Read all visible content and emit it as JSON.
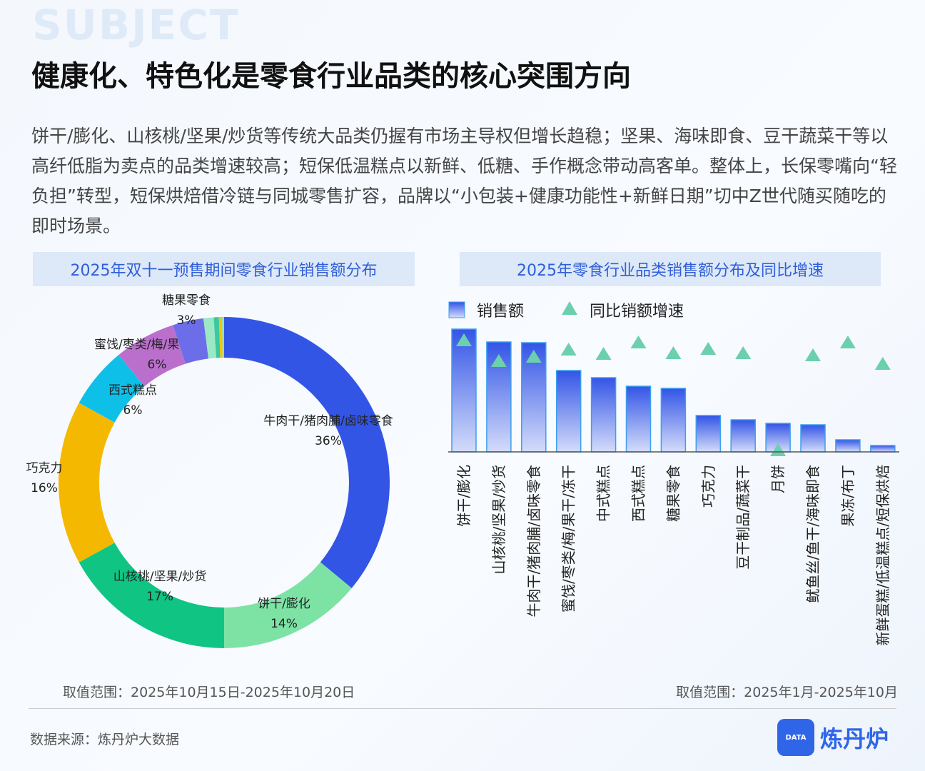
{
  "watermark": "SUBJECT",
  "title": "健康化、特色化是零食行业品类的核心突围方向",
  "description": "饼干/膨化、山核桃/坚果/炒货等传统大品类仍握有市场主导权但增长趋稳；坚果、海味即食、豆干蔬菜干等以高纤低脂为卖点的品类增速较高；短保低温糕点以新鲜、低糖、手作概念带动高客单。整体上，长保零嘴向“轻负担”转型，短保烘焙借冷链与同城零售扩容，品牌以“小包装+健康功能性+新鲜日期”切中Z世代随买随吃的即时场景。",
  "footer": {
    "source": "数据来源：炼丹炉大数据",
    "brand": "炼丹炉",
    "logo_text": "DATA"
  },
  "chart_data": [
    {
      "type": "pie",
      "donut": true,
      "title": "2025年双十一预售期间零食行业销售额分布",
      "note": "取值范围：2025年10月15日-2025年10月20日",
      "slices": [
        {
          "label": "牛肉干/猪肉脯/卤味零食",
          "value": 36,
          "display": "36%",
          "color": "#3355e6"
        },
        {
          "label": "饼干/膨化",
          "value": 14,
          "display": "14%",
          "color": "#7de3a5"
        },
        {
          "label": "山核桃/坚果/炒货",
          "value": 17,
          "display": "17%",
          "color": "#10c484"
        },
        {
          "label": "巧克力",
          "value": 16,
          "display": "16%",
          "color": "#f5b800"
        },
        {
          "label": "西式糕点",
          "value": 6,
          "display": "6%",
          "color": "#0ec0e8"
        },
        {
          "label": "蜜饯/枣类/梅/果干/冻干",
          "value": 6,
          "display": "6%",
          "color": "#bb6fcc"
        },
        {
          "label": "糖果零食",
          "value": 3,
          "display": "3%",
          "color": "#6b6ee8"
        },
        {
          "label": "",
          "value": 1,
          "display": "",
          "color": "#9be8c4"
        },
        {
          "label": "",
          "value": 0.5,
          "display": "",
          "color": "#3cc8a0"
        },
        {
          "label": "",
          "value": 0.3,
          "display": "",
          "color": "#f5c400"
        },
        {
          "label": "",
          "value": 0.2,
          "display": "",
          "color": "#8fe0b0"
        }
      ]
    },
    {
      "type": "bar+scatter",
      "title": "2025年零食行业品类销售额分布及同比增速",
      "note": "取值范围：2025年1月-2025年10月",
      "axis_values_shown": false,
      "categories": [
        "饼干/膨化",
        "山核桃/坚果/炒货",
        "牛肉干/猪肉脯/卤味零食",
        "蜜饯/枣类/梅/果干/冻干",
        "中式糕点",
        "西式糕点",
        "糖果零食",
        "巧克力",
        "豆干制品/蔬菜干",
        "月饼",
        "鱿鱼丝/鱼干/海味即食",
        "果冻/布丁",
        "新鲜蛋糕/低温糕点/短保烘焙"
      ],
      "series": [
        {
          "name": "销售额",
          "type": "bar",
          "color": "#3355e6",
          "values": [
            172,
            154,
            153,
            114,
            104,
            92,
            89,
            51,
            45,
            40,
            38,
            17,
            9
          ]
        },
        {
          "name": "同比销额增速",
          "type": "triangle",
          "color": "#6ccfae",
          "values": [
            157,
            128,
            134,
            144,
            138,
            154,
            139,
            145,
            139,
            3,
            136,
            154,
            124
          ]
        }
      ]
    }
  ]
}
